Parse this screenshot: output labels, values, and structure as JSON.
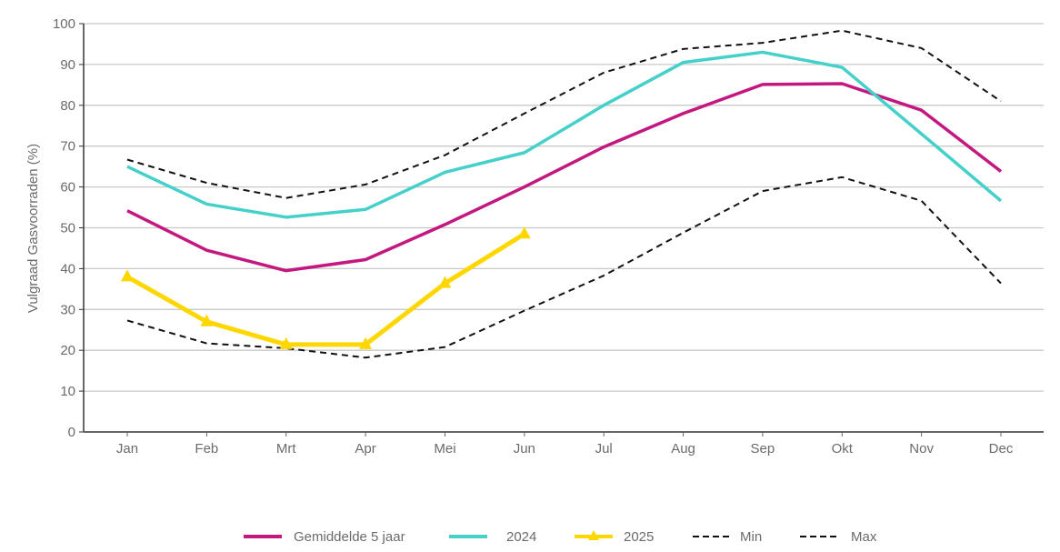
{
  "chart_data": {
    "type": "line",
    "title": "",
    "xlabel": "",
    "ylabel": "Vulgraad Gasvoorraden (%)",
    "ylim": [
      0,
      100
    ],
    "yticks": [
      0,
      10,
      20,
      30,
      40,
      50,
      60,
      70,
      80,
      90,
      100
    ],
    "grid": true,
    "legend_position": "bottom",
    "categories": [
      "Jan",
      "Feb",
      "Mrt",
      "Apr",
      "Mei",
      "Jun",
      "Jul",
      "Aug",
      "Sep",
      "Okt",
      "Nov",
      "Dec"
    ],
    "series": [
      {
        "name": "Gemiddelde 5 jaar",
        "color": "#c2187f",
        "style": "solid",
        "marker": "none",
        "values": [
          54.2,
          44.5,
          39.5,
          42.2,
          50.8,
          60.0,
          69.8,
          78.0,
          85.1,
          85.3,
          78.8,
          63.8
        ]
      },
      {
        "name": "2024",
        "color": "#45d0c9",
        "style": "solid",
        "marker": "none",
        "values": [
          65.0,
          55.8,
          52.6,
          54.5,
          63.6,
          68.4,
          80.0,
          90.5,
          93.0,
          89.3,
          73.0,
          56.6
        ]
      },
      {
        "name": "2025",
        "color": "#ffd700",
        "style": "solid",
        "marker": "triangle",
        "values": [
          38.0,
          27.0,
          21.4,
          21.4,
          36.4,
          48.5,
          null,
          null,
          null,
          null,
          null,
          null
        ]
      },
      {
        "name": "Min",
        "color": "#111111",
        "style": "dashed",
        "marker": "none",
        "values": [
          27.3,
          21.7,
          20.5,
          18.2,
          20.8,
          29.7,
          38.3,
          48.8,
          59.0,
          62.4,
          56.6,
          36.4
        ]
      },
      {
        "name": "Max",
        "color": "#111111",
        "style": "dashed",
        "marker": "none",
        "values": [
          66.7,
          61.0,
          57.3,
          60.6,
          67.8,
          78.0,
          88.0,
          93.8,
          95.3,
          98.3,
          94.0,
          81.0
        ]
      }
    ]
  }
}
